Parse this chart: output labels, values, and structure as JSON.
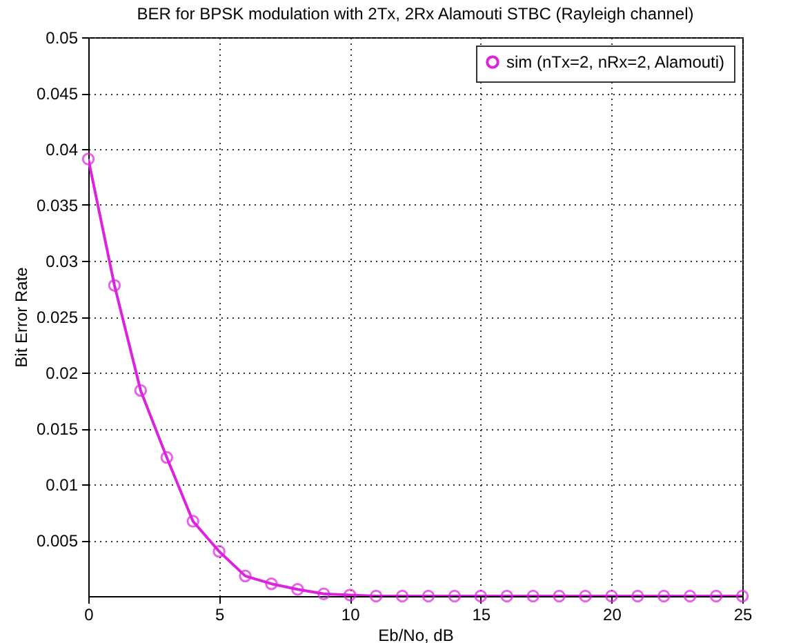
{
  "chart_data": {
    "type": "line",
    "title": "BER for BPSK modulation with 2Tx, 2Rx Alamouti STBC (Rayleigh channel)",
    "xlabel": "Eb/No, dB",
    "ylabel": "Bit Error Rate",
    "x": [
      0,
      1,
      2,
      3,
      4,
      5,
      6,
      7,
      8,
      9,
      10,
      11,
      12,
      13,
      14,
      15,
      16,
      17,
      18,
      19,
      20,
      21,
      22,
      23,
      24,
      25
    ],
    "series": [
      {
        "name": "sim (nTx=2, nRx=2, Alamouti)",
        "color": "#dd22dd",
        "values": [
          0.0391,
          0.0278,
          0.0184,
          0.0124,
          0.0067,
          0.004,
          0.0018,
          0.0011,
          0.0006,
          0.0002,
          0.0001,
          0,
          0,
          0,
          0,
          0,
          0,
          0,
          0,
          0,
          0,
          0,
          0,
          0,
          0,
          0
        ]
      }
    ],
    "xlim": [
      0,
      25
    ],
    "xticks": [
      0,
      5,
      10,
      15,
      20,
      25
    ],
    "ylim": [
      0,
      0.05
    ],
    "yticks": [
      0.005,
      0.01,
      0.015,
      0.02,
      0.025,
      0.03,
      0.035,
      0.04,
      0.045,
      0.05
    ],
    "grid": true,
    "legend": "top right",
    "marker": "circle",
    "line_style": "solid"
  }
}
